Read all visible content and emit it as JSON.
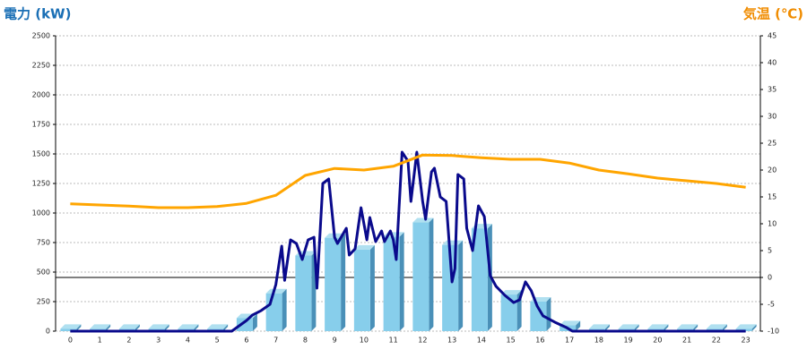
{
  "chart_data": {
    "type": "bar",
    "y_title": "電力 (kW)",
    "y2_title": "気温 (℃)",
    "categories": [
      "0",
      "1",
      "2",
      "3",
      "4",
      "5",
      "6",
      "7",
      "8",
      "9",
      "10",
      "11",
      "12",
      "13",
      "14",
      "15",
      "16",
      "17",
      "18",
      "19",
      "20",
      "21",
      "22",
      "23"
    ],
    "ylim": [
      0,
      2500
    ],
    "yticks": [
      0,
      250,
      500,
      750,
      1000,
      1250,
      1500,
      1750,
      2000,
      2250,
      2500
    ],
    "y2lim": [
      -10,
      45
    ],
    "y2ticks": [
      -10,
      -5,
      0,
      5,
      10,
      15,
      20,
      25,
      30,
      35,
      40,
      45
    ],
    "grid": true,
    "series": [
      {
        "type": "bar",
        "color": "#87ceeb",
        "values": [
          20,
          20,
          20,
          20,
          20,
          20,
          110,
          320,
          640,
          790,
          690,
          800,
          920,
          730,
          870,
          310,
          250,
          50,
          20,
          20,
          20,
          20,
          20,
          20
        ]
      },
      {
        "type": "line",
        "color": "#0a0a8c",
        "x": [
          0,
          5.5,
          6,
          6.2,
          6.5,
          6.8,
          7,
          7.2,
          7.3,
          7.5,
          7.7,
          7.9,
          8.1,
          8.3,
          8.4,
          8.6,
          8.8,
          9,
          9.1,
          9.4,
          9.5,
          9.7,
          9.9,
          10.1,
          10.2,
          10.4,
          10.6,
          10.7,
          10.9,
          11,
          11.1,
          11.3,
          11.5,
          11.6,
          11.8,
          12,
          12.1,
          12.3,
          12.4,
          12.6,
          12.8,
          13,
          13.1,
          13.2,
          13.4,
          13.5,
          13.7,
          13.9,
          14.1,
          14.3,
          14.5,
          14.8,
          15.1,
          15.3,
          15.5,
          15.7,
          15.9,
          16.1,
          16.5,
          16.9,
          17.1,
          23
        ],
        "values": [
          0,
          0,
          90,
          136,
          174,
          227,
          394,
          720,
          430,
          773,
          742,
          606,
          773,
          795,
          364,
          1250,
          1288,
          795,
          742,
          871,
          644,
          697,
          1045,
          773,
          962,
          758,
          848,
          758,
          848,
          773,
          606,
          1515,
          1439,
          1098,
          1515,
          1098,
          947,
          1348,
          1379,
          1136,
          1098,
          417,
          530,
          1326,
          1288,
          871,
          682,
          1061,
          970,
          470,
          379,
          303,
          242,
          265,
          417,
          341,
          212,
          129,
          76,
          30,
          0,
          0
        ]
      },
      {
        "type": "line",
        "axis": "y2",
        "color": "#ffa500",
        "values": [
          13.7,
          13.5,
          13.3,
          13,
          13,
          13.2,
          13.8,
          15.3,
          19,
          20.3,
          20,
          20.7,
          22.8,
          22.7,
          22.3,
          22,
          22,
          21.3,
          20,
          19.3,
          18.5,
          18,
          17.5,
          16.8
        ]
      }
    ]
  }
}
